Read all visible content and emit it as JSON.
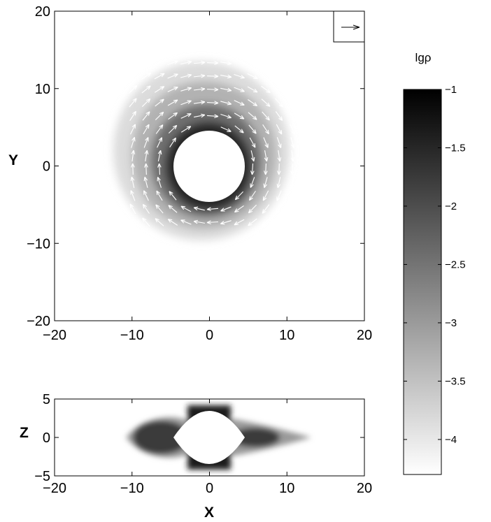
{
  "chart_data": [
    {
      "type": "heatmap",
      "panel": "xy-plane",
      "xlabel": "",
      "ylabel": "Y",
      "xlim": [
        -20,
        20
      ],
      "ylim": [
        -20,
        20
      ],
      "xticks": [
        -20,
        -10,
        0,
        10,
        20
      ],
      "yticks": [
        -20,
        -10,
        0,
        10,
        20
      ],
      "xtick_labels": [
        "−20",
        "−10",
        "0",
        "10",
        "20"
      ],
      "ytick_labels": [
        "−20",
        "−10",
        "0",
        "10",
        "20"
      ],
      "colormap": "gray (dark = high)",
      "inner_hole_radius": 4.6,
      "disk_outer_radius": 12.5,
      "disk_center_offset": [
        -1.0,
        2.0
      ],
      "velocity_field": "clockwise arrows (white) around the central hole",
      "reference_vector_box": "top-right"
    },
    {
      "type": "heatmap",
      "panel": "xz-plane",
      "xlabel": "X",
      "ylabel": "Z",
      "xlim": [
        -20,
        20
      ],
      "ylim": [
        -5,
        5
      ],
      "xticks": [
        -20,
        -10,
        0,
        10,
        20
      ],
      "yticks": [
        -5,
        0,
        5
      ],
      "xtick_labels": [
        "−20",
        "−10",
        "0",
        "10",
        "20"
      ],
      "ytick_labels": [
        "−5",
        "0",
        "5"
      ],
      "colormap": "gray (dark = high)",
      "hole_half_width": 4.6,
      "hole_half_height": 3.0
    },
    {
      "type": "colorbar",
      "title": "lgρ",
      "range": [
        -4.3,
        -1
      ],
      "ticks": [
        -1,
        -1.5,
        -2,
        -2.5,
        -3,
        -3.5,
        -4
      ],
      "tick_labels": [
        "−1",
        "−1.5",
        "−2",
        "−2.5",
        "−3",
        "−3.5",
        "−4"
      ]
    }
  ]
}
